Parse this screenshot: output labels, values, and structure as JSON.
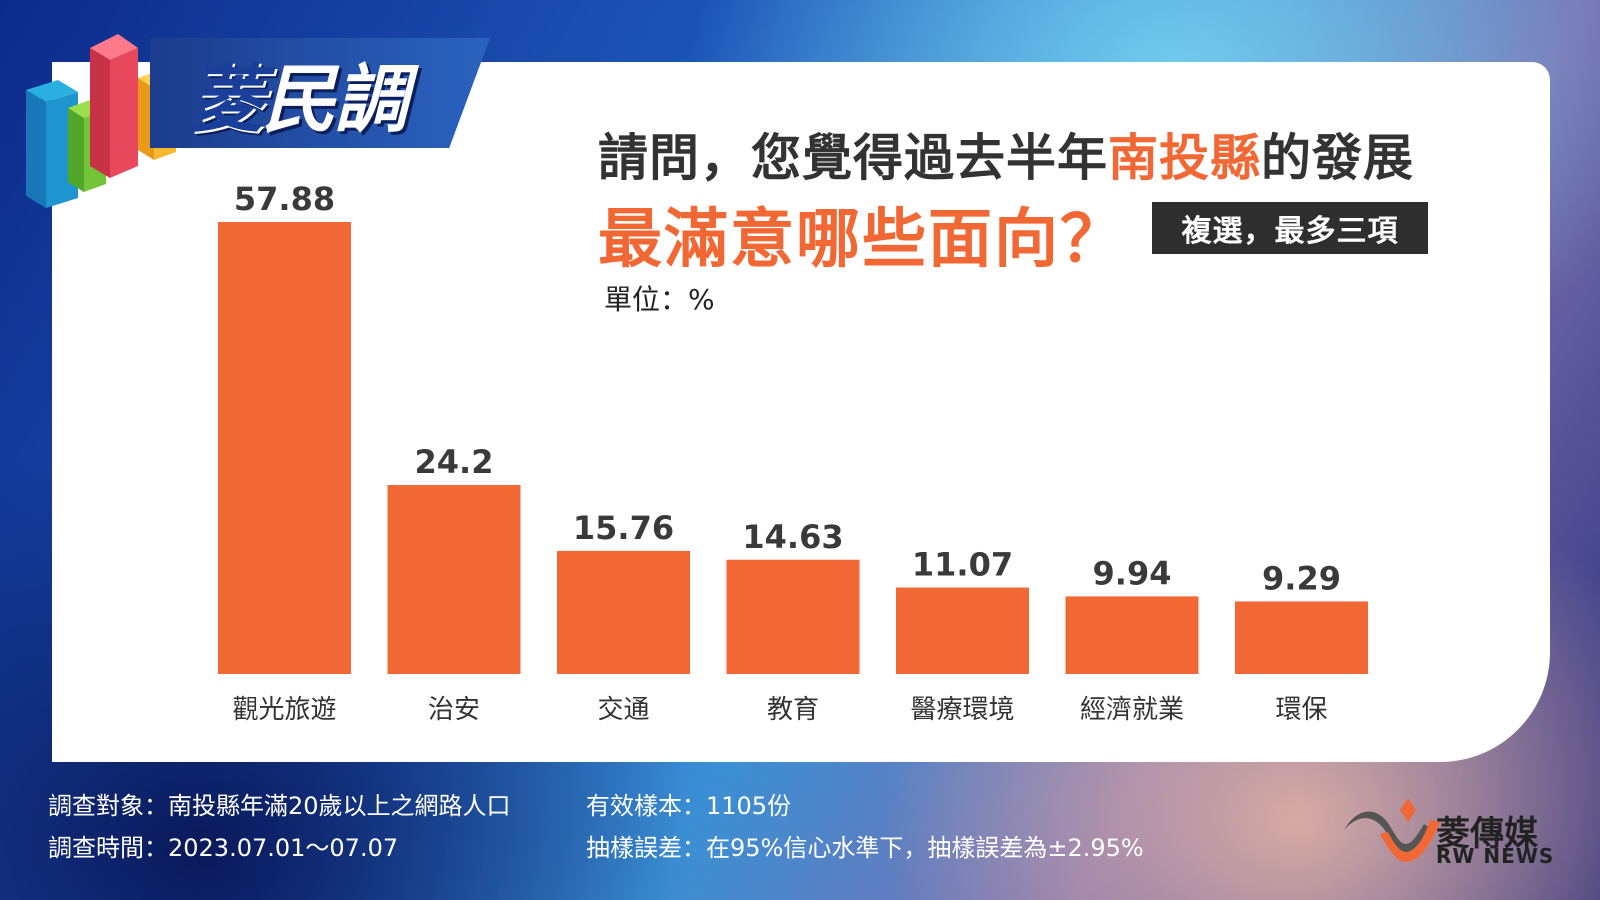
{
  "logo": {
    "text_first": "菱",
    "text_rest": "民調"
  },
  "question": {
    "line1_pre": "請問，您覺得過去半年",
    "line1_highlight": "南投縣",
    "line1_post": "的發展",
    "line2": "最滿意哪些面向？",
    "note": "複選，最多三項",
    "unit": "單位：%"
  },
  "chart_data": {
    "type": "bar",
    "categories": [
      "觀光旅遊",
      "治安",
      "交通",
      "教育",
      "醫療環境",
      "經濟就業",
      "環保"
    ],
    "values": [
      57.88,
      24.2,
      15.76,
      14.63,
      11.07,
      9.94,
      9.29
    ],
    "value_labels": [
      "57.88",
      "24.2",
      "15.76",
      "14.63",
      "11.07",
      "9.94",
      "9.29"
    ],
    "ylabel": "單位：%",
    "ylim": [
      0,
      60
    ],
    "bar_color": "#f26835",
    "grid": false
  },
  "footer": {
    "target": "調查對象：南投縣年滿20歲以上之網路人口",
    "time": "調查時間：2023.07.01～07.07",
    "sample": "有效樣本：1105份",
    "error": "抽樣誤差：在95%信心水準下，抽樣誤差為±2.95%"
  },
  "brand": {
    "name": "菱傳媒",
    "sub": "RW NEWS"
  }
}
